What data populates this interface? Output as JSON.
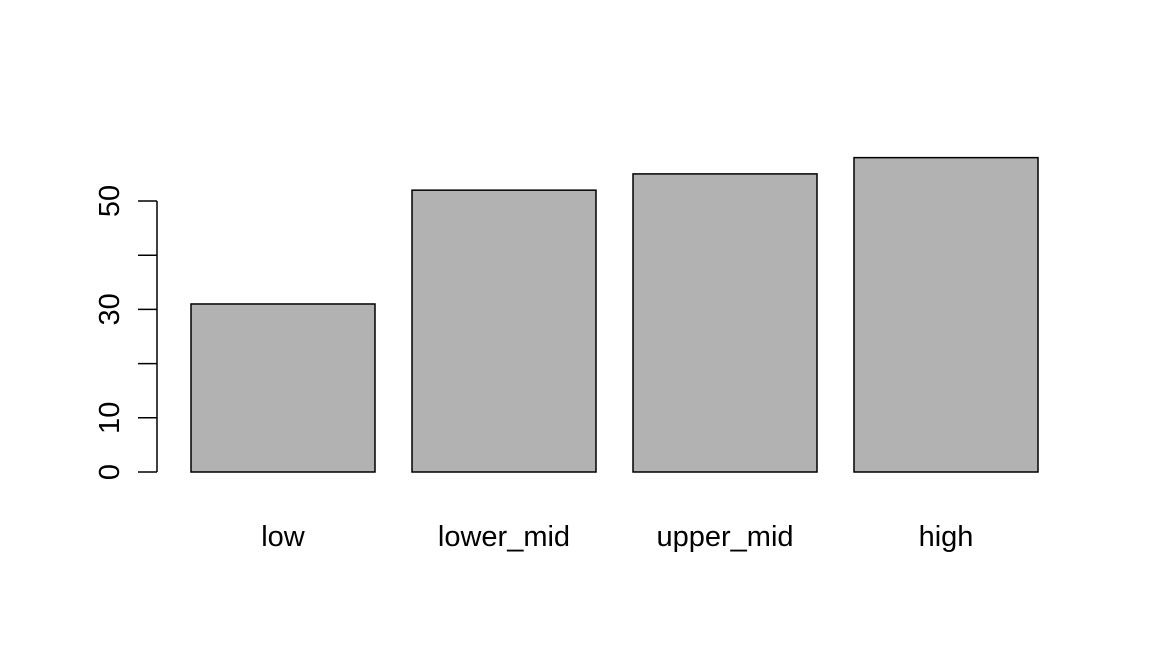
{
  "chart_data": {
    "type": "bar",
    "title": "",
    "xlabel": "",
    "ylabel": "",
    "categories": [
      "low",
      "lower_mid",
      "upper_mid",
      "high"
    ],
    "values": [
      31,
      52,
      55,
      58
    ],
    "ylim": [
      0,
      60
    ],
    "y_ticks": [
      0,
      10,
      20,
      30,
      40,
      50
    ],
    "y_tick_labels": [
      "0",
      "10",
      "",
      "30",
      "",
      "50"
    ],
    "bar_color": "#b2b2b2",
    "grid": false,
    "legend": "none"
  }
}
